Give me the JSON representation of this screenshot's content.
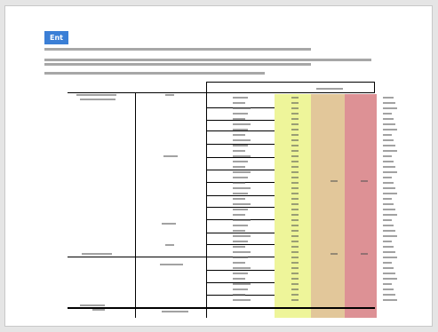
{
  "document": {
    "badge_label": "Ent"
  },
  "colors": {
    "badge": "#3b7fd6",
    "column_yellow": "#eef59a",
    "column_tan": "#e2c79a",
    "column_red": "#dd9195",
    "rule": "#000000",
    "page_background": "#ffffff"
  }
}
